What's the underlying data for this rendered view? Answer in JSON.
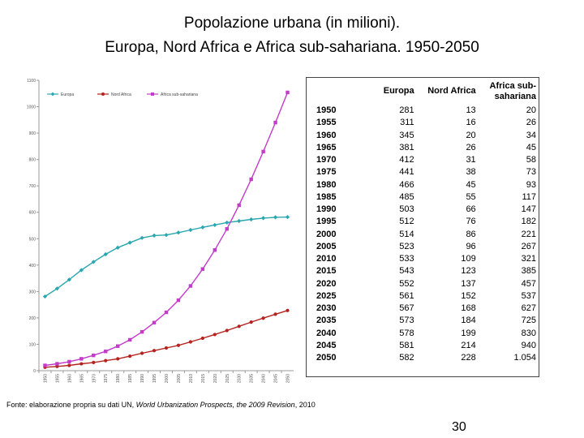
{
  "slide": {
    "title_line1": "Popolazione urbana (in milioni).",
    "title_line2": "Europa, Nord Africa e Africa sub-sahariana. 1950-2050",
    "source_prefix": "Fonte: elaborazione propria su dati UN, ",
    "source_italic": "World Urbanization Prospects, the 2009 Revision",
    "source_suffix": ", 2010",
    "page_number": "30"
  },
  "chart_data": {
    "type": "line",
    "title": "",
    "x": [
      "1950",
      "1955",
      "1960",
      "1965",
      "1970",
      "1975",
      "1980",
      "1985",
      "1990",
      "1995",
      "2000",
      "2005",
      "2010",
      "2015",
      "2020",
      "2025",
      "2030",
      "2035",
      "2040",
      "2045",
      "2050"
    ],
    "ylim": [
      0,
      1100
    ],
    "yticks": [
      0,
      100,
      200,
      300,
      400,
      500,
      600,
      700,
      800,
      900,
      1000,
      1100
    ],
    "series": [
      {
        "name": "Europa",
        "color": "#2aa6b0",
        "marker": "diamond",
        "values": [
          281,
          311,
          345,
          381,
          412,
          441,
          466,
          485,
          503,
          512,
          514,
          523,
          533,
          543,
          552,
          561,
          567,
          573,
          578,
          581,
          582
        ]
      },
      {
        "name": "Nord Africa",
        "color": "#b5231f",
        "marker": "circle",
        "values": [
          13,
          16,
          20,
          26,
          31,
          38,
          45,
          55,
          66,
          76,
          86,
          96,
          109,
          123,
          137,
          152,
          168,
          184,
          199,
          214,
          228
        ]
      },
      {
        "name": "Africa sub-sahariana",
        "color": "#c23bc9",
        "marker": "square",
        "values": [
          20,
          26,
          34,
          45,
          58,
          73,
          93,
          117,
          147,
          182,
          221,
          267,
          321,
          385,
          457,
          537,
          627,
          725,
          830,
          940,
          1054
        ]
      }
    ]
  },
  "table": {
    "headers": [
      "",
      "Europa",
      "Nord Africa",
      "Africa sub-sahariana"
    ],
    "rows": [
      [
        "1950",
        "281",
        "13",
        "20"
      ],
      [
        "1955",
        "311",
        "16",
        "26"
      ],
      [
        "1960",
        "345",
        "20",
        "34"
      ],
      [
        "1965",
        "381",
        "26",
        "45"
      ],
      [
        "1970",
        "412",
        "31",
        "58"
      ],
      [
        "1975",
        "441",
        "38",
        "73"
      ],
      [
        "1980",
        "466",
        "45",
        "93"
      ],
      [
        "1985",
        "485",
        "55",
        "117"
      ],
      [
        "1990",
        "503",
        "66",
        "147"
      ],
      [
        "1995",
        "512",
        "76",
        "182"
      ],
      [
        "2000",
        "514",
        "86",
        "221"
      ],
      [
        "2005",
        "523",
        "96",
        "267"
      ],
      [
        "2010",
        "533",
        "109",
        "321"
      ],
      [
        "2015",
        "543",
        "123",
        "385"
      ],
      [
        "2020",
        "552",
        "137",
        "457"
      ],
      [
        "2025",
        "561",
        "152",
        "537"
      ],
      [
        "2030",
        "567",
        "168",
        "627"
      ],
      [
        "2035",
        "573",
        "184",
        "725"
      ],
      [
        "2040",
        "578",
        "199",
        "830"
      ],
      [
        "2045",
        "581",
        "214",
        "940"
      ],
      [
        "2050",
        "582",
        "228",
        "1.054"
      ]
    ]
  }
}
